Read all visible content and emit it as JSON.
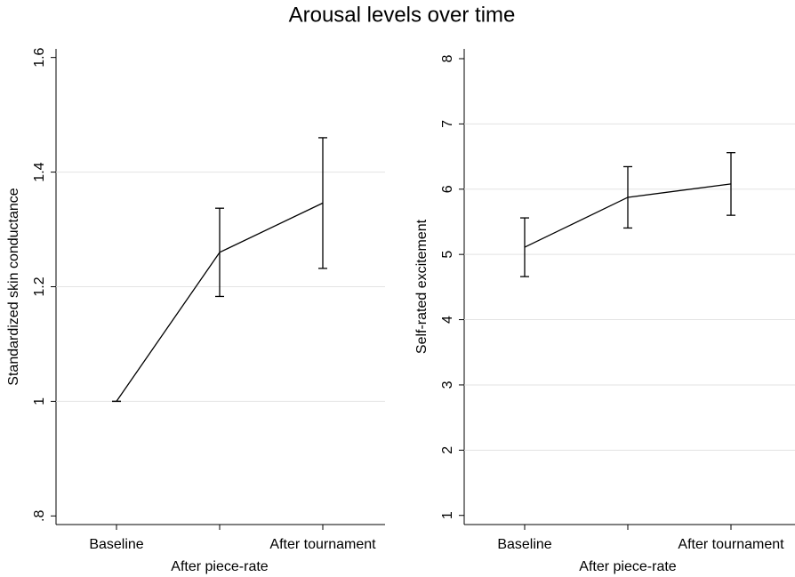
{
  "title": "Arousal levels over time",
  "chart_data": [
    {
      "type": "line",
      "ylabel": "Standardized skin conductance",
      "categories": [
        "Baseline",
        "After piece-rate",
        "After tournament"
      ],
      "values": [
        1.0,
        1.26,
        1.346
      ],
      "errors": [
        0,
        0.077,
        0.114
      ],
      "color": "#000000",
      "ylim": [
        0.785,
        1.615
      ],
      "yticks": [
        {
          "value": 0.8,
          "label": ".8"
        },
        1,
        1.2,
        1.4,
        1.6
      ],
      "grid": true
    },
    {
      "type": "line",
      "ylabel": "Self-rated excitement",
      "categories": [
        "Baseline",
        "After piece-rate",
        "After tournament"
      ],
      "values": [
        5.11,
        5.875,
        6.08
      ],
      "errors": [
        0.45,
        0.47,
        0.48
      ],
      "color": "#000000",
      "ylim": [
        0.86,
        8.15
      ],
      "yticks": [
        1,
        2,
        3,
        4,
        5,
        6,
        7,
        8
      ],
      "grid": true
    }
  ]
}
